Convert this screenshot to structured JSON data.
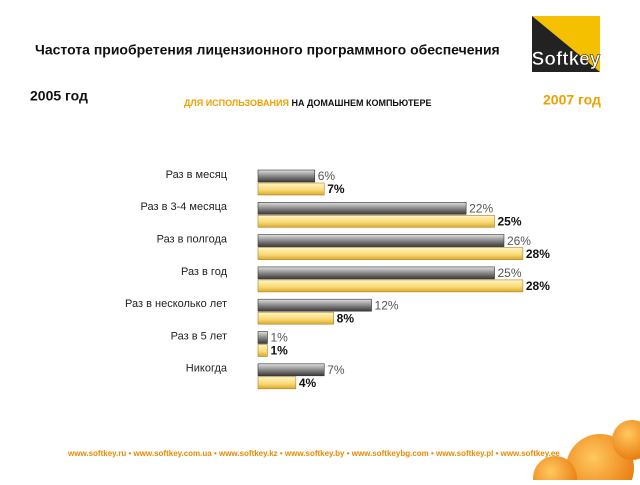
{
  "chart_data": {
    "type": "bar",
    "orientation": "horizontal",
    "title": "Частота приобретения лицензионного программного обеспечения",
    "subtitle": [
      "ДЛЯ ИСПОЛЬЗОВАНИЯ",
      "НА ДОМАШНЕМ КОМПЬЮТЕРЕ"
    ],
    "categories": [
      "Раз в месяц",
      "Раз в 3-4 месяца",
      "Раз в полгода",
      "Раз в год",
      "Раз в несколько лет",
      "Раз в 5 лет",
      "Никогда"
    ],
    "series": [
      {
        "name": "2005 год",
        "color": "#8c8c8c",
        "values": [
          6,
          22,
          26,
          25,
          12,
          1,
          7
        ],
        "value_labels": [
          "6%",
          "22%",
          "26%",
          "25%",
          "12%",
          "1%",
          "7%"
        ]
      },
      {
        "name": "2007 год",
        "color": "#f5cf5a",
        "values": [
          7,
          25,
          28,
          28,
          8,
          1,
          4
        ],
        "value_labels": [
          "7%",
          "25%",
          "28%",
          "28%",
          "8%",
          "1%",
          "4%"
        ]
      }
    ]
  },
  "logo": "Softkey",
  "footer": "www.softkey.ru • www.softkey.com.ua • www.softkey.kz • www.softkey.by • www.softkeybg.com • www.softkey.pl • www.softkey.ee"
}
